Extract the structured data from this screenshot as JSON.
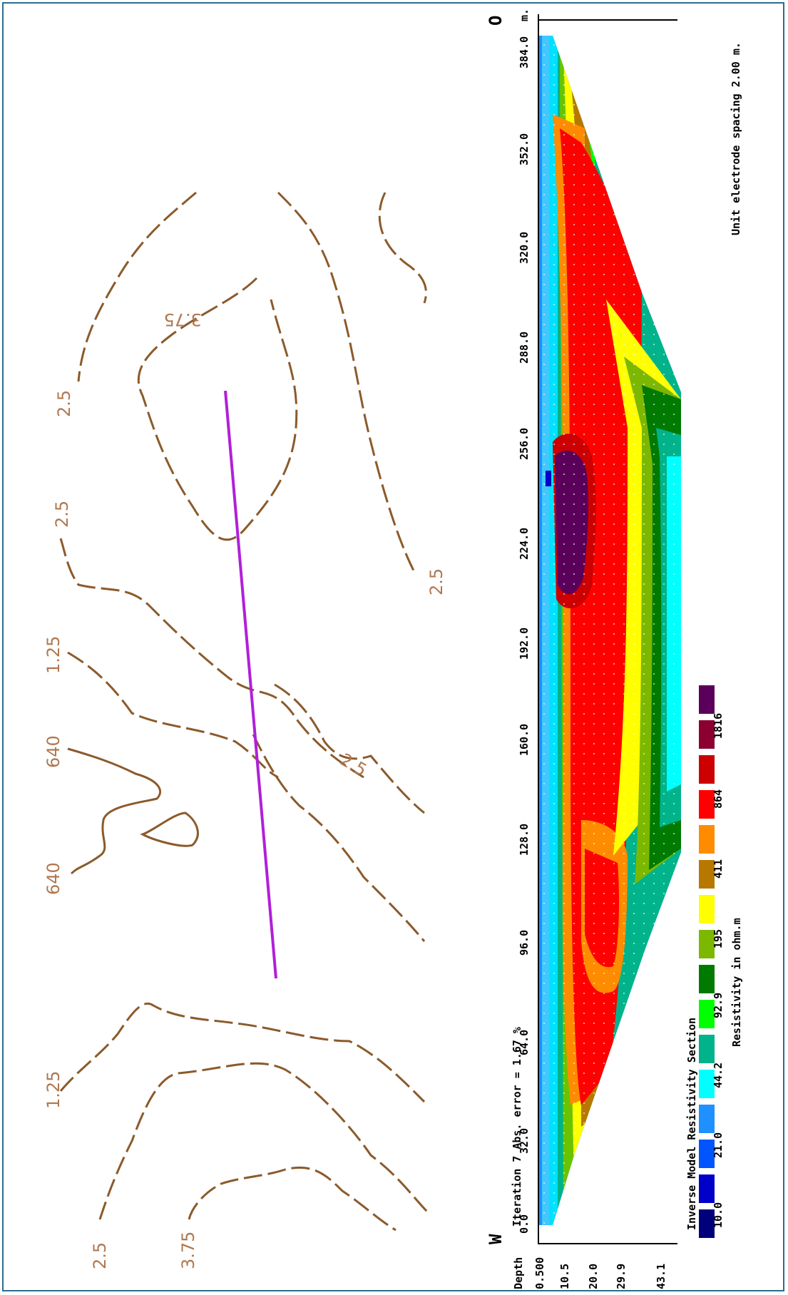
{
  "map": {
    "contour_labels": [
      "2.5",
      "3.75",
      "2.5",
      "2.5",
      "1.25",
      "640",
      "2.5",
      "640",
      "1.25",
      "2.5",
      "3.75"
    ]
  },
  "section": {
    "title": "Inverse Model Resistivity Section",
    "iteration_text": "Iteration 7 Abs. error = 1.67 %",
    "spacing_text": "Unit electrode spacing 2.00 m.",
    "orientation": {
      "start": "W",
      "end": "O"
    },
    "depth_label": "Depth",
    "depth_ticks": [
      "0.500",
      "10.5",
      "20.0",
      "29.9",
      "43.1"
    ],
    "distance_ticks": [
      "0.0",
      "32.0",
      "64.0",
      "96.0",
      "128.0",
      "160.0",
      "192.0",
      "224.0",
      "256.0",
      "288.0",
      "320.0",
      "352.0",
      "384.0"
    ],
    "distance_unit": "m.",
    "legend": {
      "label": "Resistivity in ohm.m",
      "values": [
        "10.0",
        "21.0",
        "44.2",
        "92.9",
        "195",
        "411",
        "864",
        "1816"
      ],
      "colors": [
        "#00007a",
        "#0000c8",
        "#0055ff",
        "#1e90ff",
        "#00ffff",
        "#00b38a",
        "#00ff00",
        "#007a00",
        "#7cb800",
        "#ffff00",
        "#b87800",
        "#ff8c00",
        "#ff0000",
        "#cc0000",
        "#8b0030",
        "#5a005a"
      ]
    }
  },
  "colors": {
    "profile_line": "#b020d8",
    "contour": "#8b5a2b",
    "contour_label": "#b07850",
    "border": "#2c6e8e"
  }
}
